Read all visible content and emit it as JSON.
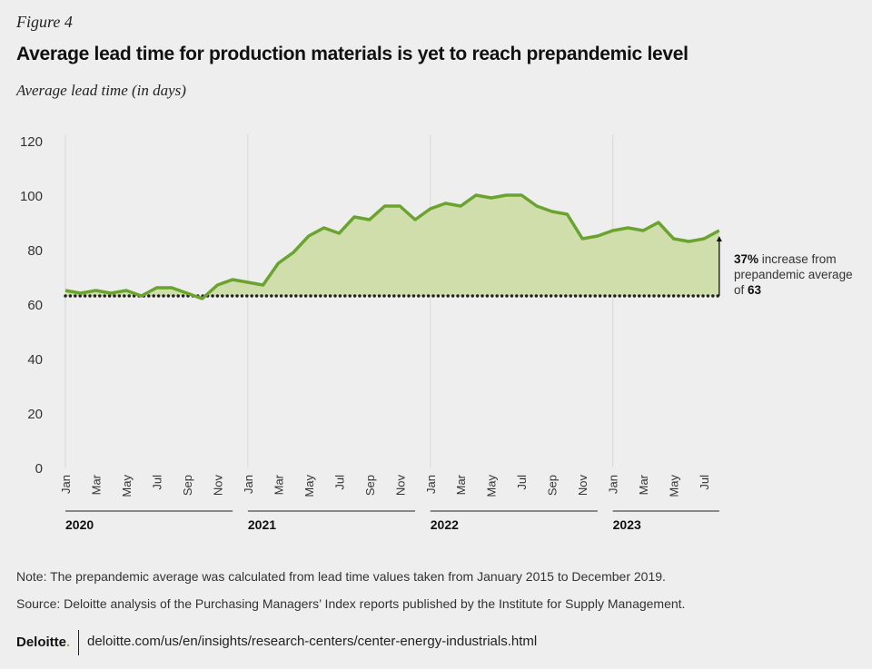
{
  "figure_label": "Figure 4",
  "title": "Average lead time for production materials is yet to reach prepandemic level",
  "subtitle": "Average lead time (in days)",
  "note": "Note: The prepandemic average was calculated from lead time values taken from January 2015 to December 2019.",
  "source": "Source: Deloitte analysis of the Purchasing Managers’ Index reports published by the Institute for Supply Management.",
  "brand": "Deloitte",
  "url": "deloitte.com/us/en/insights/research-centers/center-energy-industrials.html",
  "colors": {
    "line": "#6aa42f",
    "fill": "#cfdeaa",
    "reference": "#222222",
    "grid": "#d8d8d8"
  },
  "chart_data": {
    "type": "area",
    "ylim": [
      0,
      120
    ],
    "yticks": [
      0,
      20,
      40,
      60,
      80,
      100,
      120
    ],
    "grid": "vertical lines at each January",
    "years": [
      "2020",
      "2021",
      "2022",
      "2023"
    ],
    "month_tick_labels": [
      "Jan",
      "Mar",
      "May",
      "Jul",
      "Sep",
      "Nov"
    ],
    "x": [
      "2020-01",
      "2020-02",
      "2020-03",
      "2020-04",
      "2020-05",
      "2020-06",
      "2020-07",
      "2020-08",
      "2020-09",
      "2020-10",
      "2020-11",
      "2020-12",
      "2021-01",
      "2021-02",
      "2021-03",
      "2021-04",
      "2021-05",
      "2021-06",
      "2021-07",
      "2021-08",
      "2021-09",
      "2021-10",
      "2021-11",
      "2021-12",
      "2022-01",
      "2022-02",
      "2022-03",
      "2022-04",
      "2022-05",
      "2022-06",
      "2022-07",
      "2022-08",
      "2022-09",
      "2022-10",
      "2022-11",
      "2022-12",
      "2023-01",
      "2023-02",
      "2023-03",
      "2023-04",
      "2023-05",
      "2023-06",
      "2023-07",
      "2023-08"
    ],
    "values": [
      65,
      64,
      65,
      64,
      65,
      63,
      66,
      66,
      64,
      62,
      67,
      69,
      68,
      67,
      75,
      79,
      85,
      88,
      86,
      92,
      91,
      96,
      96,
      91,
      95,
      97,
      96,
      100,
      99,
      100,
      100,
      96,
      94,
      93,
      84,
      85,
      87,
      88,
      87,
      90,
      84,
      83,
      84,
      87
    ],
    "reference_line": {
      "value": 63,
      "style": "dotted"
    },
    "annotation": {
      "bold": "37%",
      "text1": " increase from",
      "text2": "prepandemic average",
      "text3": "of ",
      "bold2": "63"
    }
  }
}
